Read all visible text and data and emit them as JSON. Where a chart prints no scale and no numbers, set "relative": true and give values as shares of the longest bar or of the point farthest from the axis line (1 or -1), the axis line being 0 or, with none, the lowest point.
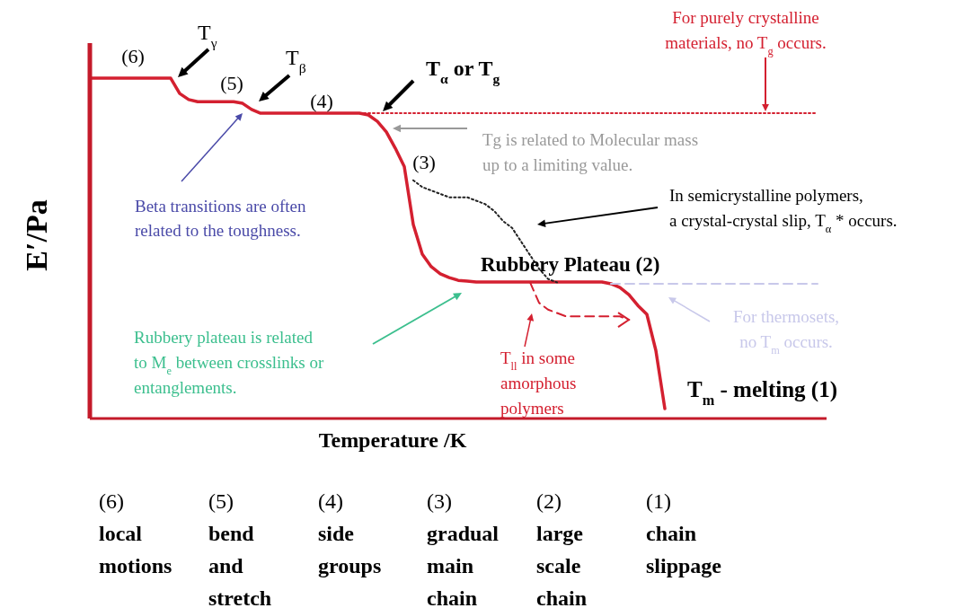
{
  "chart_data": {
    "type": "line",
    "relative": true,
    "xlabel": "Temperature /K",
    "ylabel": "E′/Pa",
    "marker": "none",
    "categories": [
      null,
      null,
      null,
      null,
      null,
      null,
      null,
      null,
      null,
      null,
      null,
      null,
      null,
      null,
      null,
      null,
      null,
      null,
      null,
      null,
      null,
      null,
      null,
      null,
      null,
      null,
      null,
      null,
      null,
      null,
      null,
      null,
      null,
      null,
      null,
      null,
      null,
      null,
      null,
      null,
      null,
      null,
      null,
      null,
      null,
      null,
      null,
      null,
      null,
      null,
      null,
      null,
      null,
      null,
      null,
      null,
      null,
      null,
      null,
      null,
      null,
      null,
      null,
      null,
      null,
      null,
      null,
      null,
      null,
      null,
      null,
      null,
      null,
      null,
      null,
      null,
      null,
      null,
      null,
      null,
      null,
      null,
      null
    ],
    "series": [
      {
        "color": "#d42030",
        "line_style": "solid",
        "values": [
          1,
          1,
          1,
          1,
          1,
          1,
          1,
          1,
          1,
          1,
          0.955,
          0.937,
          0.931,
          0.931,
          0.931,
          0.931,
          0.931,
          0.926,
          0.908,
          0.897,
          0.897,
          0.897,
          0.897,
          0.897,
          0.897,
          0.897,
          0.897,
          0.897,
          0.897,
          0.897,
          0.897,
          0.892,
          0.873,
          0.842,
          0.794,
          0.74,
          0.57,
          0.483,
          0.446,
          0.425,
          0.414,
          0.406,
          0.404,
          0.401,
          0.401,
          0.401,
          0.401,
          0.401,
          0.401,
          0.401,
          0.401,
          0.401,
          0.401,
          0.401,
          0.401,
          0.401,
          0.401,
          0.401,
          0.396,
          0.385,
          0.364,
          0.332,
          0.306,
          0.2,
          0.029,
          null,
          null,
          null,
          null,
          null,
          null,
          null,
          null,
          null,
          null,
          null,
          null,
          null,
          null,
          null,
          null,
          null,
          null
        ]
      },
      {
        "color": "#d42030",
        "line_style": "dotted",
        "values": [
          null,
          null,
          null,
          null,
          null,
          null,
          null,
          null,
          null,
          null,
          null,
          null,
          null,
          null,
          null,
          null,
          null,
          null,
          null,
          null,
          null,
          null,
          null,
          null,
          null,
          null,
          null,
          null,
          null,
          null,
          0.897,
          0.897,
          0.897,
          0.897,
          0.897,
          0.897,
          0.897,
          0.897,
          0.897,
          0.897,
          0.897,
          0.897,
          0.897,
          0.897,
          0.897,
          0.897,
          0.897,
          0.897,
          0.897,
          0.897,
          0.897,
          0.897,
          0.897,
          0.897,
          0.897,
          0.897,
          0.897,
          0.897,
          0.897,
          0.897,
          0.897,
          0.897,
          0.897,
          0.897,
          0.897,
          0.897,
          0.897,
          0.897,
          0.897,
          0.897,
          0.897,
          0.897,
          0.897,
          0.897,
          0.897,
          0.897,
          0.897,
          0.897,
          0.897,
          0.897,
          0.897,
          0.897,
          null
        ]
      },
      {
        "color": "#c8c8ea",
        "line_style": "dashed",
        "values": [
          null,
          null,
          null,
          null,
          null,
          null,
          null,
          null,
          null,
          null,
          null,
          null,
          null,
          null,
          null,
          null,
          null,
          null,
          null,
          null,
          null,
          null,
          null,
          null,
          null,
          null,
          null,
          null,
          null,
          null,
          null,
          null,
          null,
          null,
          null,
          null,
          null,
          null,
          null,
          null,
          null,
          null,
          null,
          null,
          null,
          null,
          null,
          null,
          null,
          null,
          null,
          null,
          null,
          null,
          null,
          null,
          null,
          null,
          0.396,
          0.396,
          0.396,
          0.396,
          0.396,
          0.396,
          0.396,
          0.396,
          0.396,
          0.396,
          0.396,
          0.396,
          0.396,
          0.396,
          0.396,
          0.396,
          0.396,
          0.396,
          0.396,
          0.396,
          0.396,
          0.396,
          0.396,
          0.396,
          null
        ]
      },
      {
        "color": "#222222",
        "line_style": "dotted",
        "values": [
          null,
          null,
          null,
          null,
          null,
          null,
          null,
          null,
          null,
          null,
          null,
          null,
          null,
          null,
          null,
          null,
          null,
          null,
          null,
          null,
          null,
          null,
          null,
          null,
          null,
          null,
          null,
          null,
          null,
          null,
          null,
          null,
          null,
          null,
          null,
          null,
          0.7,
          0.68,
          0.67,
          0.66,
          0.65,
          0.65,
          0.65,
          0.64,
          0.63,
          0.61,
          0.58,
          0.56,
          0.52,
          0.48,
          0.44,
          0.41,
          0.4,
          null,
          null,
          null,
          null,
          null,
          null,
          null,
          null,
          null,
          null,
          null,
          null,
          null,
          null,
          null,
          null,
          null,
          null,
          null,
          null,
          null,
          null,
          null,
          null,
          null,
          null,
          null,
          null,
          null,
          null
        ]
      },
      {
        "color": "#d42030",
        "line_style": "dashed",
        "values": [
          null,
          null,
          null,
          null,
          null,
          null,
          null,
          null,
          null,
          null,
          null,
          null,
          null,
          null,
          null,
          null,
          null,
          null,
          null,
          null,
          null,
          null,
          null,
          null,
          null,
          null,
          null,
          null,
          null,
          null,
          null,
          null,
          null,
          null,
          null,
          null,
          null,
          null,
          null,
          null,
          null,
          null,
          null,
          null,
          null,
          null,
          null,
          null,
          null,
          0.4,
          0.34,
          0.32,
          0.31,
          0.3,
          0.3,
          0.3,
          0.3,
          0.3,
          0.3,
          0.3,
          0.29,
          null,
          null,
          null,
          null,
          null,
          null,
          null,
          null,
          null,
          null,
          null,
          null,
          null,
          null,
          null,
          null,
          null,
          null,
          null,
          null,
          null,
          null
        ]
      }
    ],
    "annotations": [
      "(6)",
      "T$_{γ}$",
      "(5)",
      "T$_{β}$",
      "(4)",
      "T$_{α}$ or T$_{g}$",
      "(3)",
      "For purely crystalline\nmaterials,  no T$_{g}$ occurs.",
      "Tg is related to Molecular mass\nup to a limiting value.",
      "In semicrystalline polymers,\na crystal-crystal slip, T$_{α}$* occurs.",
      "Beta transitions are often\nrelated to the toughness.",
      "Rubbery Plateau (2)",
      "Rubbery plateau is related\nto M$_{e}$ between crosslinks or\nentanglements.",
      "T$_{ll}$  in some\namorphous\npolymers",
      "For thermosets,\nno T$_{m}$ occurs.",
      "T$_{m}$ - melting (1)",
      "(6)\nlocal\nmotions",
      "(5)\nbend\nand\nstretch",
      "(4)\nside\ngroups",
      "(3)\ngradual\nmain\nchain",
      "(2)\nlarge\nscale\nchain",
      "(1)\nchain\nslippage"
    ]
  }
}
